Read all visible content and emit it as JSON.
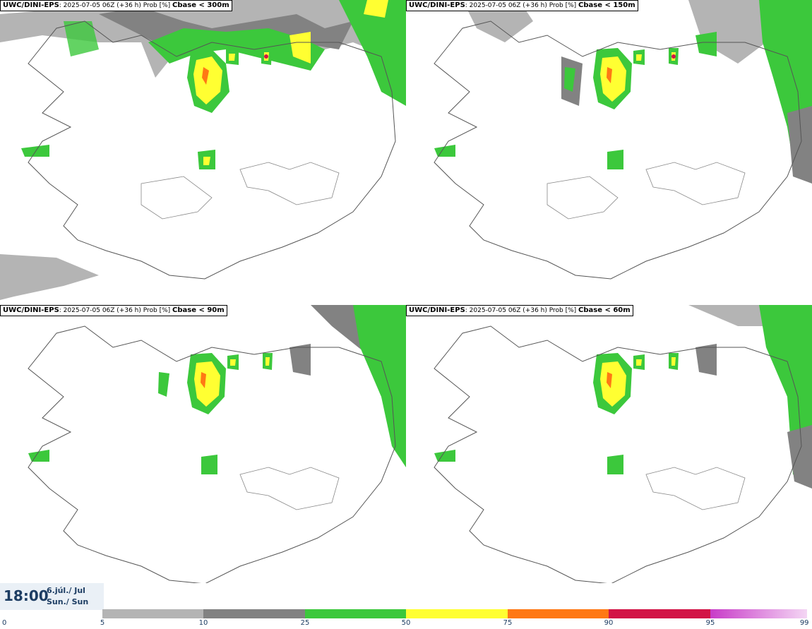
{
  "panels": [
    {
      "model": "UWC/DINI-EPS",
      "run": ": 2025-07-05 06Z (+36 h) Prob [%] ",
      "param": "Cbase < 300m"
    },
    {
      "model": "UWC/DINI-EPS",
      "run": ": 2025-07-05 06Z (+36 h) Prob [%] ",
      "param": "Cbase < 150m"
    },
    {
      "model": "UWC/DINI-EPS",
      "run": ": 2025-07-05 06Z (+36 h) Prob [%] ",
      "param": "Cbase < 90m"
    },
    {
      "model": "UWC/DINI-EPS",
      "run": ": 2025-07-05 06Z (+36 h) Prob [%] ",
      "param": "Cbase < 60m"
    }
  ],
  "valid_time": {
    "time": "18:00",
    "date_line1": "6.júl./ Jul",
    "date_line2": "Sun./ Sun"
  },
  "legend": {
    "ticks": [
      "0",
      "5",
      "10",
      "25",
      "50",
      "75",
      "90",
      "95",
      "99"
    ],
    "colors": [
      "#b4b4b4",
      "#828282",
      "#3cc83c",
      "#ffff32",
      "#ff7814",
      "#d21446",
      "#c83cc8"
    ]
  }
}
